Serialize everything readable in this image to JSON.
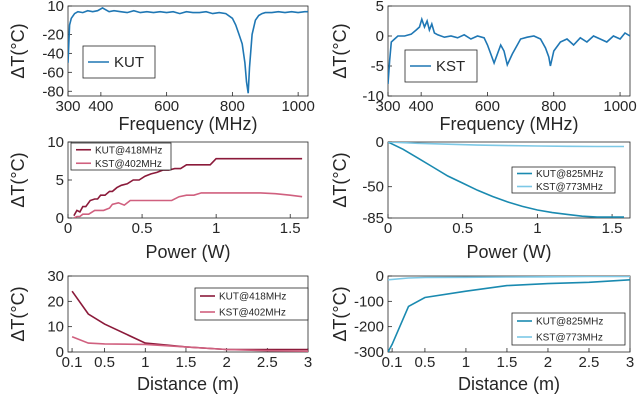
{
  "chart_data": [
    {
      "id": "p1",
      "type": "line",
      "xlabel": "Frequency (MHz)",
      "ylabel": "ΔT(°C)",
      "xlim": [
        300,
        1030
      ],
      "ylim": [
        -85,
        10
      ],
      "xticks": [
        300,
        400,
        600,
        800,
        1000
      ],
      "yticks": [
        10,
        -20,
        -40,
        -60,
        -80
      ],
      "legend": "bottom-left",
      "series": [
        {
          "name": "KUT",
          "color": "#1f77b4",
          "x": [
            300,
            305,
            310,
            320,
            330,
            345,
            360,
            375,
            390,
            405,
            415,
            425,
            440,
            460,
            480,
            500,
            520,
            540,
            560,
            580,
            600,
            620,
            640,
            660,
            680,
            700,
            720,
            740,
            760,
            780,
            800,
            810,
            820,
            830,
            838,
            843,
            848,
            852,
            860,
            870,
            880,
            890,
            900,
            920,
            940,
            960,
            980,
            1000,
            1020,
            1030
          ],
          "y": [
            -50,
            -10,
            -3,
            2,
            4,
            3,
            5,
            4,
            5,
            8,
            6,
            4,
            5,
            4,
            3,
            5,
            3,
            4,
            3,
            4,
            3,
            4,
            2,
            4,
            3,
            3,
            4,
            2,
            3,
            2,
            -3,
            -10,
            -20,
            -30,
            -50,
            -70,
            -82,
            -55,
            -20,
            -5,
            0,
            2,
            3,
            3,
            4,
            3,
            4,
            3,
            4,
            4
          ]
        }
      ]
    },
    {
      "id": "p2",
      "type": "line",
      "xlabel": "Frequency (MHz)",
      "ylabel": "ΔT(°C)",
      "xlim": [
        300,
        1030
      ],
      "ylim": [
        -10,
        5
      ],
      "xticks": [
        300,
        400,
        600,
        800,
        1000
      ],
      "yticks": [
        5,
        0,
        -5,
        -10
      ],
      "legend": "bottom-left",
      "series": [
        {
          "name": "KST",
          "color": "#1f77b4",
          "x": [
            300,
            305,
            310,
            320,
            330,
            350,
            370,
            385,
            395,
            402,
            410,
            418,
            425,
            432,
            440,
            450,
            470,
            490,
            510,
            530,
            550,
            570,
            590,
            600,
            610,
            620,
            630,
            640,
            650,
            660,
            675,
            690,
            700,
            720,
            740,
            760,
            775,
            785,
            790,
            800,
            820,
            840,
            860,
            880,
            900,
            920,
            940,
            960,
            980,
            1000,
            1015,
            1030
          ],
          "y": [
            -8,
            -4,
            -1,
            -0.5,
            0,
            0,
            0.3,
            1,
            1.5,
            2.8,
            1.5,
            2.5,
            1,
            2,
            0.5,
            0.2,
            -0.2,
            0,
            -0.3,
            0.2,
            -0.5,
            0,
            -0.3,
            -1.5,
            -3,
            -4.5,
            -3,
            -1.5,
            -2.5,
            -4.8,
            -3,
            -1.5,
            -0.5,
            -0.2,
            0,
            -0.5,
            -2,
            -3.5,
            -5,
            -2.5,
            -1,
            -0.5,
            -1.5,
            -0.3,
            -1,
            0,
            -0.5,
            -1,
            0,
            -0.5,
            0.5,
            0
          ]
        }
      ]
    },
    {
      "id": "p3",
      "type": "line",
      "xlabel": "Power (W)",
      "ylabel": "ΔT(°C)",
      "xlim": [
        0,
        1.62
      ],
      "ylim": [
        0,
        10
      ],
      "xticks": [
        0,
        0.5,
        1,
        1.5
      ],
      "yticks": [
        10,
        5,
        0
      ],
      "legend": "top-left",
      "series": [
        {
          "name": "KUT@418MHz",
          "color": "#8b1a3a",
          "x": [
            0.04,
            0.06,
            0.08,
            0.1,
            0.12,
            0.15,
            0.18,
            0.2,
            0.22,
            0.25,
            0.28,
            0.3,
            0.33,
            0.36,
            0.4,
            0.44,
            0.48,
            0.52,
            0.56,
            0.6,
            0.64,
            0.68,
            0.72,
            0.76,
            0.8,
            0.88,
            0.96,
            1.0,
            1.1,
            1.2,
            1.3,
            1.4,
            1.5,
            1.58
          ],
          "y": [
            0.3,
            1,
            0.8,
            1.5,
            1.5,
            2.3,
            2.5,
            2.5,
            3,
            3,
            3.5,
            3.5,
            4,
            4.3,
            4.5,
            5,
            5,
            5.5,
            5.8,
            6,
            6.3,
            6.3,
            6.5,
            6.5,
            7,
            7,
            7,
            7.8,
            7.8,
            7.8,
            7.8,
            7.8,
            7.8,
            7.8
          ]
        },
        {
          "name": "KST@402MHz",
          "color": "#d0607f",
          "x": [
            0.04,
            0.06,
            0.08,
            0.1,
            0.14,
            0.18,
            0.2,
            0.24,
            0.28,
            0.3,
            0.34,
            0.38,
            0.42,
            0.48,
            0.56,
            0.62,
            0.7,
            0.75,
            0.8,
            0.85,
            0.9,
            1.0,
            1.1,
            1.2,
            1.3,
            1.4,
            1.5,
            1.58
          ],
          "y": [
            0,
            0.2,
            0.2,
            0.5,
            0.5,
            1,
            1,
            1,
            1.3,
            1.8,
            2,
            1.7,
            2.3,
            2.3,
            2.3,
            2.3,
            2.3,
            2.8,
            3,
            3,
            3.3,
            3.3,
            3.3,
            3.3,
            3.3,
            3.2,
            3,
            2.8
          ]
        }
      ]
    },
    {
      "id": "p4",
      "type": "line",
      "xlabel": "Power (W)",
      "ylabel": "ΔT(°C)",
      "xlim": [
        0,
        1.62
      ],
      "ylim": [
        -85,
        0
      ],
      "xticks": [
        0,
        0.5,
        1,
        1.5
      ],
      "yticks": [
        0,
        -50,
        -85
      ],
      "legend": "bottom-right",
      "series": [
        {
          "name": "KUT@825MHz",
          "color": "#1a8ab0",
          "x": [
            0,
            0.1,
            0.2,
            0.3,
            0.4,
            0.5,
            0.6,
            0.7,
            0.8,
            0.9,
            1.0,
            1.1,
            1.2,
            1.3,
            1.4,
            1.5,
            1.58
          ],
          "y": [
            0,
            -8,
            -18,
            -28,
            -38,
            -46,
            -54,
            -61,
            -67,
            -72,
            -76,
            -79,
            -81,
            -83,
            -84,
            -84,
            -84
          ]
        },
        {
          "name": "KST@773MHz",
          "color": "#7cc8e6",
          "x": [
            0,
            0.2,
            0.4,
            0.6,
            0.8,
            1.0,
            1.2,
            1.4,
            1.58
          ],
          "y": [
            0,
            -1.5,
            -2.5,
            -3.5,
            -4,
            -4.5,
            -4.8,
            -5,
            -5
          ]
        }
      ]
    },
    {
      "id": "p5",
      "type": "line",
      "xlabel": "Distance (m)",
      "ylabel": "ΔT(°C)",
      "xlim": [
        0.05,
        3.0
      ],
      "ylim": [
        0,
        30
      ],
      "xticks": [
        0.1,
        0.5,
        1,
        1.5,
        2,
        2.5,
        3
      ],
      "xticklabels": [
        "0.1",
        "0.5",
        "1",
        "1.5",
        "2",
        "2.5",
        "3"
      ],
      "yticks": [
        30,
        20,
        10,
        0
      ],
      "legend": "top-right",
      "series": [
        {
          "name": "KUT@418MHz",
          "color": "#8b1a3a",
          "x": [
            0.1,
            0.3,
            0.5,
            1,
            1.5,
            2,
            2.5,
            3
          ],
          "y": [
            24,
            15,
            11,
            3.5,
            2,
            1,
            1,
            1
          ]
        },
        {
          "name": "KST@402MHz",
          "color": "#d0607f",
          "x": [
            0.1,
            0.3,
            0.5,
            1,
            1.5,
            2,
            2.5,
            3
          ],
          "y": [
            6,
            3.5,
            3.2,
            3,
            2,
            1,
            0.5,
            0.3
          ]
        }
      ]
    },
    {
      "id": "p6",
      "type": "line",
      "xlabel": "Distance (m)",
      "ylabel": "ΔT(°C)",
      "xlim": [
        0.05,
        3.0
      ],
      "ylim": [
        -300,
        0
      ],
      "xticks": [
        0.1,
        0.5,
        1,
        1.5,
        2,
        2.5,
        3
      ],
      "xticklabels": [
        "0.1",
        "0.5",
        "1",
        "1.5",
        "2",
        "2.5",
        "3"
      ],
      "yticks": [
        0,
        -100,
        -200,
        -300
      ],
      "legend": "bottom-right",
      "series": [
        {
          "name": "KUT@825MHz",
          "color": "#1a8ab0",
          "x": [
            0.05,
            0.1,
            0.3,
            0.5,
            1,
            1.5,
            2,
            2.5,
            3
          ],
          "y": [
            -300,
            -270,
            -120,
            -85,
            -60,
            -38,
            -30,
            -25,
            -15
          ]
        },
        {
          "name": "KST@773MHz",
          "color": "#7cc8e6",
          "x": [
            0.05,
            0.3,
            0.5,
            1,
            1.5,
            2,
            2.5,
            3
          ],
          "y": [
            -15,
            -8,
            -6,
            -5,
            -4,
            -3,
            -2,
            -2
          ]
        }
      ]
    }
  ]
}
